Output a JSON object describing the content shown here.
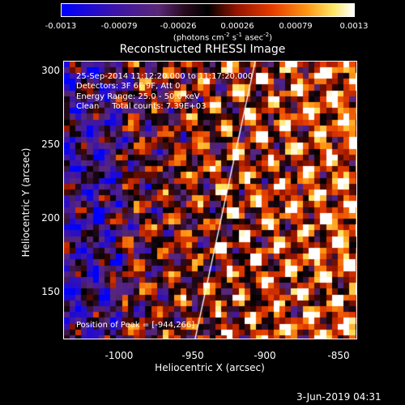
{
  "colorbar": {
    "ticks": [
      "-0.0013",
      "-0.00079",
      "-0.00026",
      "0.00026",
      "0.00079",
      "0.0013"
    ],
    "unit_prefix": "(photons cm",
    "unit_exp1": "-2",
    "unit_mid": " s",
    "unit_exp2": "-1",
    "unit_mid2": " asec",
    "unit_exp3": "-2",
    "unit_suffix": ")"
  },
  "title": "Reconstructed RHESSI Image",
  "legend": {
    "time": "25-Sep-2014 11:12:20.000 to 11:17:20.000",
    "detectors": "Detectors: 3F 6F 9F, Att 0",
    "energy": "Energy Range: 25.0 - 50.0 keV",
    "clean": "Clean     Total counts: 7.39E+03"
  },
  "peak_text": "Position of Peak = [-944,266]",
  "axes": {
    "xlabel": "Heliocentric X (arcsec)",
    "ylabel": "Heliocentric Y (arcsec)",
    "xticks": [
      "-1000",
      "-950",
      "-900",
      "-850"
    ],
    "yticks": [
      "300",
      "250",
      "200",
      "150"
    ]
  },
  "timestamp": "3-Jun-2019 04:31",
  "colors": {
    "background": "#000000",
    "foreground": "#ffffff"
  }
}
